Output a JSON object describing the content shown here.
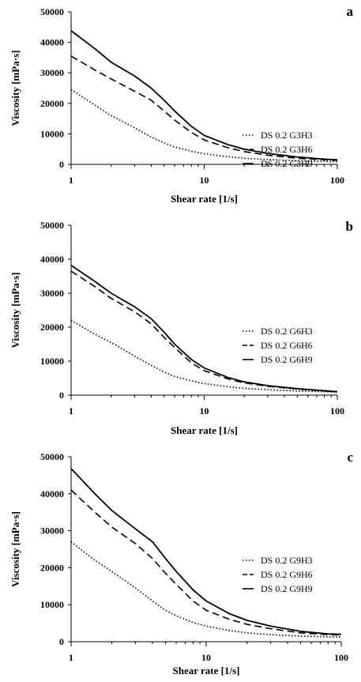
{
  "chart_data": [
    {
      "type": "line",
      "panel_label": "a",
      "xlabel": "Shear rate [1/s]",
      "ylabel": "Viscosity [mPa·s]",
      "x_scale": "log",
      "xlim": [
        1,
        100
      ],
      "ylim": [
        0,
        50000
      ],
      "x_ticks": [
        1,
        10,
        100
      ],
      "y_ticks": [
        0,
        10000,
        20000,
        30000,
        40000,
        50000
      ],
      "grid": false,
      "legend_position": "right",
      "x": [
        1,
        1.5,
        2,
        3,
        4,
        5,
        6,
        8,
        10,
        15,
        20,
        30,
        50,
        80,
        100
      ],
      "series": [
        {
          "name": "DS 0.2 G3H3",
          "dash": "dotted",
          "values": [
            24500,
            19500,
            16000,
            12000,
            9000,
            7000,
            5700,
            4300,
            3500,
            2500,
            2000,
            1600,
            1200,
            1000,
            900
          ]
        },
        {
          "name": "DS 0.2 G3H6",
          "dash": "dashed",
          "values": [
            35500,
            31000,
            28000,
            24000,
            21000,
            17500,
            14500,
            10500,
            8000,
            5500,
            4200,
            3000,
            2000,
            1500,
            1300
          ]
        },
        {
          "name": "DS 0.2 G3H9",
          "dash": "solid",
          "values": [
            43800,
            38000,
            33500,
            29000,
            25000,
            21000,
            17500,
            12500,
            9500,
            6500,
            5000,
            3600,
            2400,
            1700,
            1500
          ]
        }
      ]
    },
    {
      "type": "line",
      "panel_label": "b",
      "xlabel": "Shear rate [1/s]",
      "ylabel": "Viscosity [mPa·s]",
      "x_scale": "log",
      "xlim": [
        1,
        100
      ],
      "ylim": [
        0,
        50000
      ],
      "x_ticks": [
        1,
        10,
        100
      ],
      "y_ticks": [
        0,
        10000,
        20000,
        30000,
        40000,
        50000
      ],
      "grid": false,
      "legend_position": "right",
      "x": [
        1,
        1.5,
        2,
        3,
        4,
        5,
        6,
        8,
        10,
        15,
        20,
        30,
        50,
        80,
        100
      ],
      "series": [
        {
          "name": "DS 0.2 G6H3",
          "dash": "dotted",
          "values": [
            22000,
            18000,
            15500,
            11500,
            8800,
            6800,
            5500,
            4200,
            3400,
            2500,
            2000,
            1600,
            1200,
            1000,
            900
          ]
        },
        {
          "name": "DS 0.2 G6H6",
          "dash": "dashed",
          "values": [
            36500,
            32000,
            28500,
            24500,
            21000,
            17000,
            14000,
            9500,
            7200,
            4800,
            3600,
            2600,
            1800,
            1200,
            1000
          ]
        },
        {
          "name": "DS 0.2 G6H9",
          "dash": "solid",
          "values": [
            38200,
            33500,
            30000,
            26000,
            22500,
            18500,
            15000,
            10500,
            8000,
            5200,
            3900,
            2800,
            1900,
            1300,
            1000
          ]
        }
      ]
    },
    {
      "type": "line",
      "panel_label": "c",
      "xlabel": "Shear rate [1/s]",
      "ylabel": "Viscosity [mPa·s]",
      "x_scale": "log",
      "xlim": [
        1,
        100
      ],
      "ylim": [
        0,
        50000
      ],
      "x_ticks": [
        1,
        10,
        100
      ],
      "y_ticks": [
        0,
        10000,
        20000,
        30000,
        40000,
        50000
      ],
      "grid": false,
      "legend_position": "right",
      "x": [
        1,
        1.5,
        2,
        3,
        4,
        5,
        6,
        8,
        10,
        15,
        20,
        30,
        50,
        80,
        100
      ],
      "series": [
        {
          "name": "DS 0.2 G9H3",
          "dash": "dotted",
          "values": [
            27000,
            22000,
            19000,
            14500,
            11000,
            8500,
            7000,
            5200,
            4200,
            3000,
            2400,
            1900,
            1500,
            1300,
            1300
          ]
        },
        {
          "name": "DS 0.2 G9H6",
          "dash": "dashed",
          "values": [
            41000,
            35000,
            31000,
            26500,
            22500,
            18500,
            15500,
            11000,
            8500,
            6000,
            4700,
            3500,
            2400,
            1900,
            1800
          ]
        },
        {
          "name": "DS 0.2 G9H9",
          "dash": "solid",
          "values": [
            46800,
            40000,
            35500,
            30500,
            27000,
            22500,
            19000,
            14000,
            11000,
            7500,
            5800,
            4200,
            2800,
            2100,
            2000
          ]
        }
      ]
    }
  ]
}
